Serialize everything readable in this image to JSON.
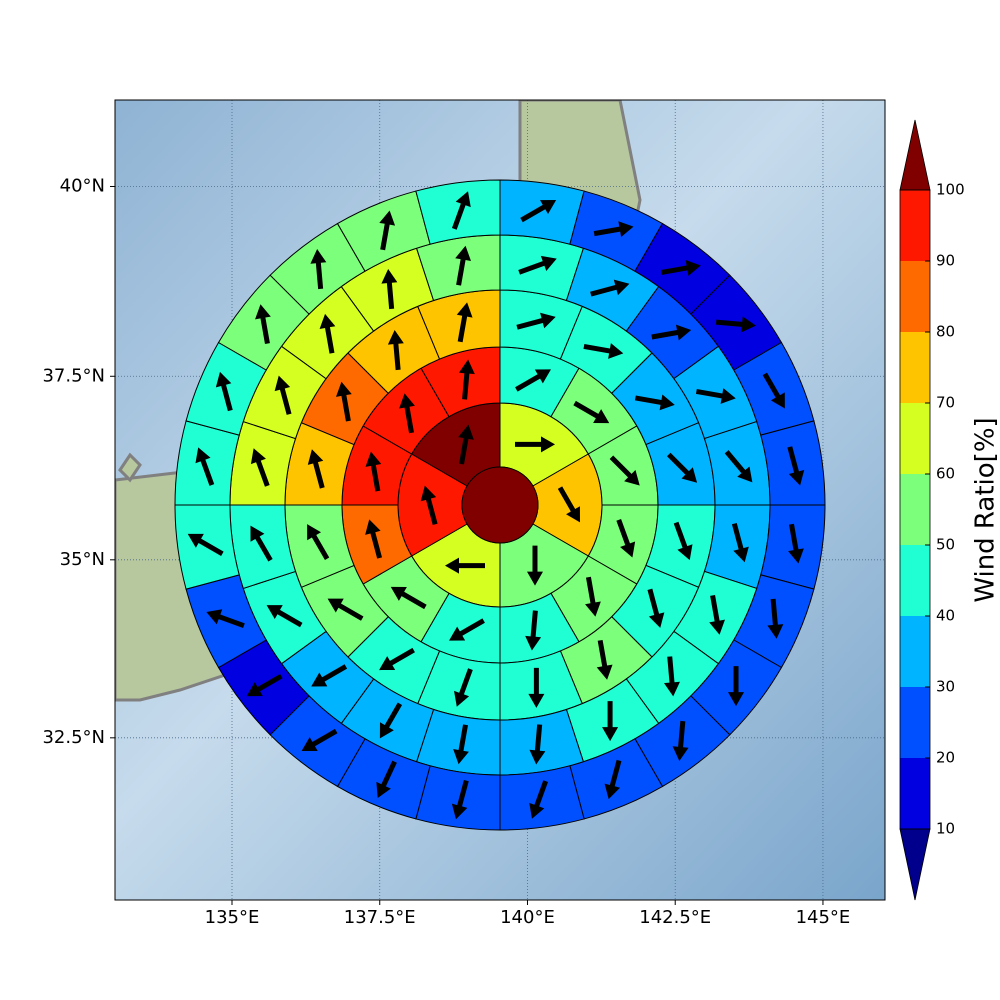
{
  "chart_data": {
    "type": "polar-sector-map",
    "xlim": [
      133.02,
      146.05
    ],
    "ylim": [
      30.16,
      41.11
    ],
    "xticks": [
      {
        "value": 135,
        "label": "135°E"
      },
      {
        "value": 137.5,
        "label": "137.5°E"
      },
      {
        "value": 140,
        "label": "140°E"
      },
      {
        "value": 142.5,
        "label": "142.5°E"
      },
      {
        "value": 145,
        "label": "145°E"
      }
    ],
    "yticks": [
      {
        "value": 32.5,
        "label": "32.5°N"
      },
      {
        "value": 35,
        "label": "35°N"
      },
      {
        "value": 37.5,
        "label": "37.5°N"
      },
      {
        "value": 40,
        "label": "40°N"
      }
    ],
    "grid": true,
    "colorbar": {
      "label": "Wind Ratio[%]",
      "levels": [
        10,
        20,
        30,
        40,
        50,
        60,
        70,
        80,
        90,
        100
      ],
      "colors": [
        "#0000e0",
        "#0050ff",
        "#00b4ff",
        "#20ffd4",
        "#7cff7a",
        "#d4ff20",
        "#ffc400",
        "#ff6a00",
        "#ff1800"
      ],
      "under_color": "#00008c",
      "over_color": "#800000"
    },
    "center": {
      "value": 100
    },
    "rings": [
      {
        "values": [
          65,
          75,
          55,
          65,
          95,
          100
        ],
        "directions": [
          90,
          150,
          180,
          270,
          345,
          10
        ]
      },
      {
        "values": [
          45,
          55,
          55,
          55,
          55,
          45,
          45,
          55,
          85,
          95,
          95,
          95
        ],
        "directions": [
          60,
          120,
          135,
          160,
          170,
          185,
          240,
          300,
          345,
          350,
          350,
          5
        ]
      },
      {
        "values": [
          45,
          45,
          35,
          35,
          45,
          45,
          55,
          45,
          45,
          45,
          55,
          55,
          75,
          85,
          75,
          75
        ],
        "directions": [
          75,
          100,
          100,
          135,
          160,
          165,
          170,
          180,
          200,
          240,
          300,
          330,
          345,
          350,
          355,
          10
        ]
      },
      {
        "values": [
          45,
          35,
          25,
          35,
          35,
          35,
          45,
          45,
          45,
          35,
          35,
          35,
          35,
          45,
          45,
          65,
          65,
          65,
          65,
          55
        ],
        "directions": [
          70,
          75,
          80,
          100,
          140,
          165,
          170,
          175,
          180,
          185,
          190,
          210,
          240,
          300,
          330,
          340,
          345,
          350,
          355,
          10
        ]
      },
      {
        "values": [
          35,
          25,
          15,
          15,
          25,
          25,
          25,
          25,
          25,
          25,
          25,
          25,
          25,
          25,
          25,
          15,
          25,
          45,
          45,
          45,
          55,
          55,
          55,
          45
        ],
        "directions": [
          60,
          80,
          80,
          95,
          150,
          165,
          170,
          175,
          180,
          185,
          195,
          200,
          195,
          205,
          240,
          240,
          290,
          300,
          340,
          345,
          350,
          355,
          10,
          20
        ]
      }
    ]
  }
}
